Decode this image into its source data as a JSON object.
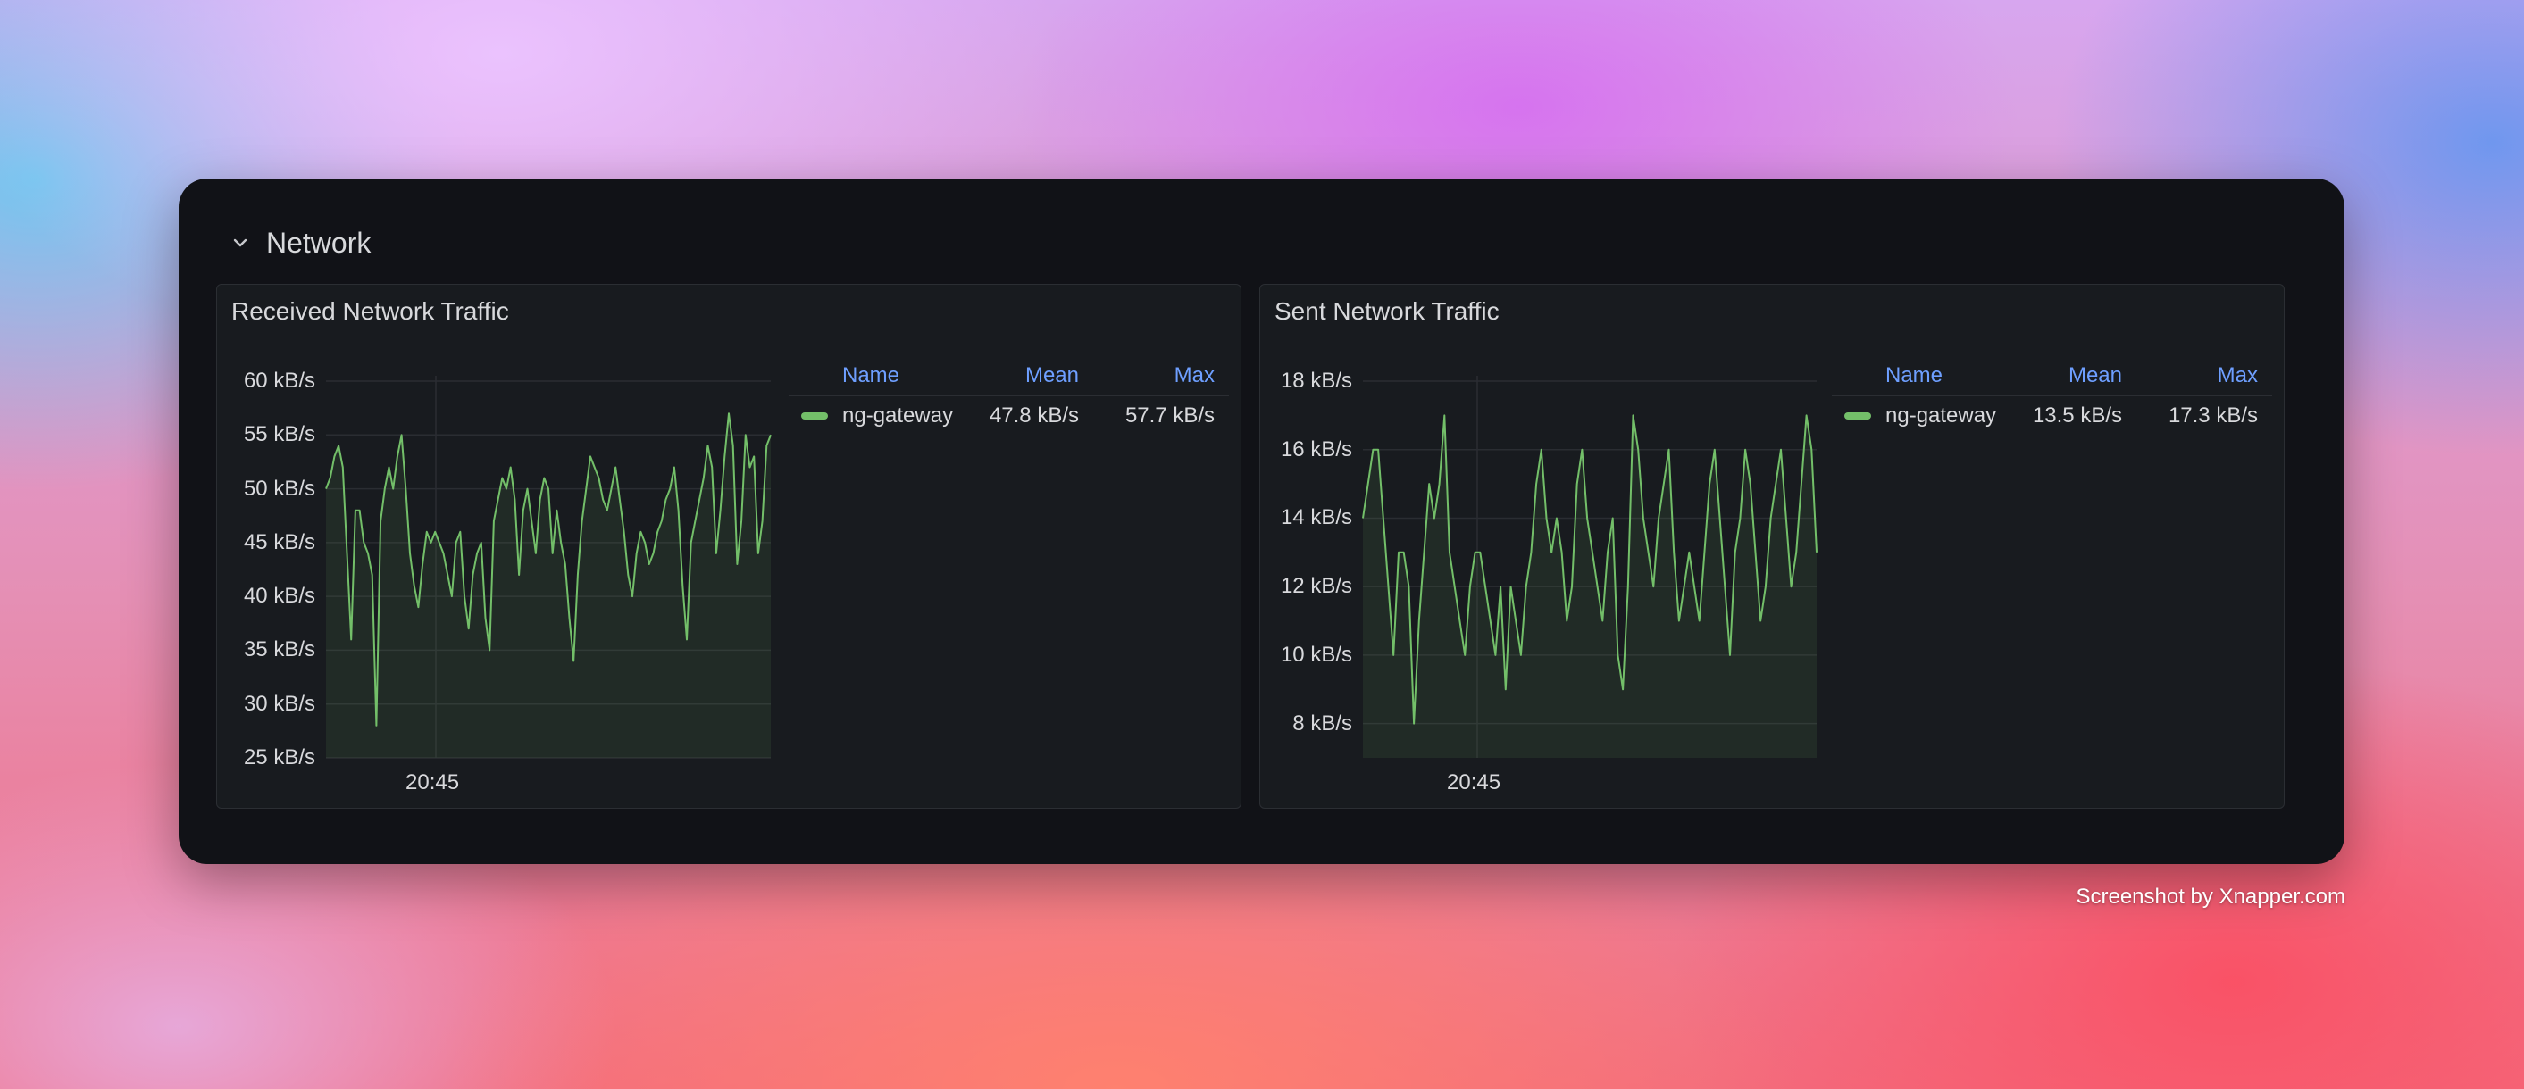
{
  "row": {
    "title": "Network",
    "collapse_icon": "chevron-down-icon"
  },
  "legend_headers": {
    "name": "Name",
    "mean": "Mean",
    "max": "Max"
  },
  "series_color": "#73bf69",
  "panels": [
    {
      "title": "Received Network Traffic",
      "legend": {
        "name": "ng-gateway",
        "mean": "47.8 kB/s",
        "max": "57.7 kB/s"
      }
    },
    {
      "title": "Sent Network Traffic",
      "legend": {
        "name": "ng-gateway",
        "mean": "13.5 kB/s",
        "max": "17.3 kB/s"
      }
    }
  ],
  "chart_data": [
    {
      "type": "area",
      "title": "Received Network Traffic",
      "series": [
        {
          "name": "ng-gateway",
          "values": [
            50,
            51,
            53,
            54,
            52,
            44,
            36,
            48,
            48,
            45,
            44,
            42,
            28,
            47,
            50,
            52,
            50,
            53,
            55,
            50,
            44,
            41,
            39,
            43,
            46,
            45,
            46,
            45,
            44,
            42,
            40,
            45,
            46,
            40,
            37,
            42,
            44,
            45,
            38,
            35,
            47,
            49,
            51,
            50,
            52,
            49,
            42,
            48,
            50,
            47,
            44,
            49,
            51,
            50,
            44,
            48,
            45,
            43,
            38,
            34,
            42,
            47,
            50,
            53,
            52,
            51,
            49,
            48,
            50,
            52,
            49,
            46,
            42,
            40,
            44,
            46,
            45,
            43,
            44,
            46,
            47,
            49,
            50,
            52,
            48,
            41,
            36,
            45,
            47,
            49,
            51,
            54,
            52,
            44,
            48,
            53,
            57,
            54,
            43,
            47,
            55,
            52,
            53,
            44,
            47,
            54,
            55
          ]
        }
      ],
      "ylim": [
        25,
        60
      ],
      "y_ticks": [
        "60 kB/s",
        "55 kB/s",
        "50 kB/s",
        "45 kB/s",
        "40 kB/s",
        "35 kB/s",
        "30 kB/s",
        "25 kB/s"
      ],
      "x_ticks": [
        "20:45"
      ],
      "grid": true,
      "legend_position": "right"
    },
    {
      "type": "area",
      "title": "Sent Network Traffic",
      "series": [
        {
          "name": "ng-gateway",
          "values": [
            14,
            15,
            16,
            16,
            14,
            12,
            10,
            13,
            13,
            12,
            8,
            11,
            13,
            15,
            14,
            15,
            17,
            13,
            12,
            11,
            10,
            12,
            13,
            13,
            12,
            11,
            10,
            12,
            9,
            12,
            11,
            10,
            12,
            13,
            15,
            16,
            14,
            13,
            14,
            13,
            11,
            12,
            15,
            16,
            14,
            13,
            12,
            11,
            13,
            14,
            10,
            9,
            12,
            17,
            16,
            14,
            13,
            12,
            14,
            15,
            16,
            13,
            11,
            12,
            13,
            12,
            11,
            13,
            15,
            16,
            14,
            12,
            10,
            13,
            14,
            16,
            15,
            13,
            11,
            12,
            14,
            15,
            16,
            14,
            12,
            13,
            15,
            17,
            16,
            13
          ]
        }
      ],
      "ylim": [
        7,
        18
      ],
      "y_ticks": [
        "18 kB/s",
        "16 kB/s",
        "14 kB/s",
        "12 kB/s",
        "10 kB/s",
        "8 kB/s"
      ],
      "x_ticks": [
        "20:45"
      ],
      "grid": true,
      "legend_position": "right"
    }
  ],
  "footer": {
    "text": "Screenshot by Xnapper.com"
  }
}
